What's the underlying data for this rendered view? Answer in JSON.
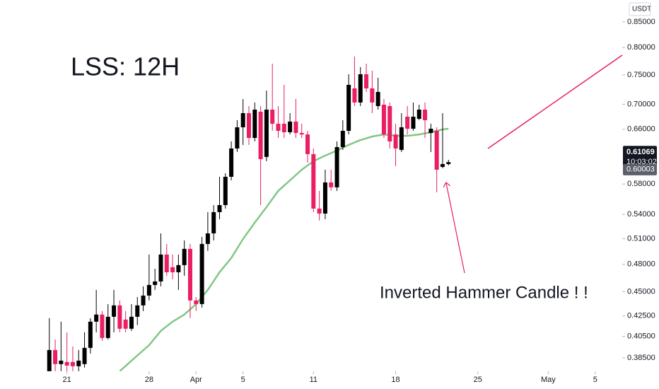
{
  "chart_data": {
    "type": "candlestick",
    "title": "LSS: 12H",
    "annotation": "Inverted Hammer Candle ! !",
    "y_unit": "USDT",
    "log_scale": true,
    "up_color": "#000000",
    "down_color": "#e91e63",
    "ylim": [
      0.373,
      0.895
    ],
    "yticks": [
      {
        "value": 0.85,
        "label": "0.85000"
      },
      {
        "value": 0.8,
        "label": "0.80000"
      },
      {
        "value": 0.75,
        "label": "0.75000"
      },
      {
        "value": 0.7,
        "label": "0.70000"
      },
      {
        "value": 0.66,
        "label": "0.66000"
      },
      {
        "value": 0.58,
        "label": "0.58000"
      },
      {
        "value": 0.54,
        "label": "0.54000"
      },
      {
        "value": 0.51,
        "label": "0.51000"
      },
      {
        "value": 0.48,
        "label": "0.48000"
      },
      {
        "value": 0.45,
        "label": "0.45000"
      },
      {
        "value": 0.425,
        "label": "0.42500"
      },
      {
        "value": 0.405,
        "label": "0.40500"
      },
      {
        "value": 0.385,
        "label": "0.38500"
      }
    ],
    "xlim": [
      -8.4,
      97.6
    ],
    "xticks": [
      {
        "value": 3,
        "label": "21"
      },
      {
        "value": 17,
        "label": "28"
      },
      {
        "value": 25,
        "label": "Apr"
      },
      {
        "value": 33,
        "label": "5"
      },
      {
        "value": 45,
        "label": "11"
      },
      {
        "value": 59,
        "label": "18"
      },
      {
        "value": 73,
        "label": "25"
      },
      {
        "value": 85,
        "label": "May"
      },
      {
        "value": 93,
        "label": "5"
      }
    ],
    "open": [
      0.3731,
      0.3922,
      0.3794,
      0.3813,
      0.3813,
      0.3775,
      0.3794,
      0.3942,
      0.4193,
      0.4264,
      0.4035,
      0.4242,
      0.4357,
      0.4214,
      0.4124,
      0.4242,
      0.4357,
      0.4459,
      0.4572,
      0.461,
      0.4912,
      0.4767,
      0.4711,
      0.4791,
      0.4978,
      0.4408,
      0.4371,
      0.5036,
      0.5163,
      0.5428,
      0.5519,
      0.59,
      0.6307,
      0.663,
      0.6855,
      0.6466,
      0.6878,
      0.6183,
      0.6912,
      0.6686,
      0.6686,
      0.6553,
      0.672,
      0.6542,
      0.6519,
      0.6224,
      0.5474,
      0.541,
      0.5822,
      0.5755,
      0.6328,
      0.6575,
      0.7267,
      0.7029,
      0.7513,
      0.7267,
      0.697,
      0.6993,
      0.697,
      0.6519,
      0.6286,
      0.6798,
      0.6608,
      0.6764,
      0.6912,
      0.6542,
      0.6575,
      0.6039,
      0.608
    ],
    "high": [
      0.4228,
      0.4021,
      0.4193,
      0.4089,
      0.3955,
      0.3922,
      0.4089,
      0.4228,
      0.4519,
      0.4299,
      0.4371,
      0.4519,
      0.4408,
      0.4299,
      0.4371,
      0.4444,
      0.4557,
      0.4912,
      0.4751,
      0.5163,
      0.5036,
      0.4912,
      0.4912,
      0.5078,
      0.5036,
      0.4444,
      0.512,
      0.5428,
      0.5519,
      0.59,
      0.5949,
      0.6413,
      0.6742,
      0.7087,
      0.697,
      0.7029,
      0.697,
      0.723,
      0.7703,
      0.697,
      0.7328,
      0.6855,
      0.7087,
      0.6686,
      0.6575,
      0.6307,
      0.5707,
      0.5999,
      0.5999,
      0.6413,
      0.6742,
      0.7513,
      0.7833,
      0.764,
      0.7703,
      0.7576,
      0.7451,
      0.7087,
      0.7029,
      0.6686,
      0.6855,
      0.697,
      0.7029,
      0.6993,
      0.7029,
      0.6686,
      0.663,
      0.6855,
      0.6141
    ],
    "low": [
      0.3731,
      0.3731,
      0.3731,
      0.3731,
      0.3731,
      0.3731,
      0.3763,
      0.389,
      0.4089,
      0.4008,
      0.4021,
      0.4089,
      0.4089,
      0.4089,
      0.4103,
      0.4159,
      0.4299,
      0.4408,
      0.4519,
      0.4557,
      0.4672,
      0.4633,
      0.4519,
      0.4672,
      0.4228,
      0.4299,
      0.4335,
      0.4954,
      0.5078,
      0.5339,
      0.5474,
      0.5851,
      0.6255,
      0.636,
      0.636,
      0.6413,
      0.5519,
      0.6121,
      0.6575,
      0.6466,
      0.6466,
      0.6519,
      0.6466,
      0.6466,
      0.61,
      0.5428,
      0.5322,
      0.5339,
      0.5707,
      0.5707,
      0.6286,
      0.6519,
      0.697,
      0.697,
      0.7206,
      0.6855,
      0.6912,
      0.6466,
      0.6307,
      0.605,
      0.6255,
      0.6519,
      0.6575,
      0.6742,
      0.6466,
      0.6255,
      0.5688,
      0.6019,
      0.606
    ],
    "close": [
      0.3922,
      0.3794,
      0.3825,
      0.3781,
      0.3775,
      0.3825,
      0.3942,
      0.4193,
      0.4264,
      0.4035,
      0.4242,
      0.4357,
      0.4124,
      0.4124,
      0.4242,
      0.4357,
      0.4459,
      0.4572,
      0.461,
      0.4912,
      0.4711,
      0.4711,
      0.4791,
      0.4978,
      0.4408,
      0.4371,
      0.5036,
      0.5163,
      0.5428,
      0.5519,
      0.59,
      0.6307,
      0.663,
      0.6855,
      0.6466,
      0.6912,
      0.6151,
      0.6912,
      0.6686,
      0.6575,
      0.6553,
      0.672,
      0.6542,
      0.6519,
      0.6224,
      0.5474,
      0.541,
      0.5822,
      0.5755,
      0.6328,
      0.6575,
      0.7328,
      0.7029,
      0.7513,
      0.7267,
      0.7029,
      0.7206,
      0.6519,
      0.6413,
      0.6307,
      0.663,
      0.6608,
      0.6798,
      0.6912,
      0.6742,
      0.6608,
      0.5999,
      0.608,
      0.6107
    ],
    "moving_average": {
      "color": "#81c784",
      "x": [
        12,
        14,
        17,
        19,
        21,
        23,
        25,
        27,
        29,
        31,
        33,
        35,
        37,
        39,
        41,
        43,
        45,
        47,
        49,
        51,
        53,
        55,
        57,
        59,
        61,
        63,
        65,
        67,
        68
      ],
      "values": [
        0.3731,
        0.3825,
        0.3968,
        0.4103,
        0.4193,
        0.4264,
        0.4371,
        0.4519,
        0.4711,
        0.4872,
        0.5095,
        0.5295,
        0.5493,
        0.5707,
        0.5851,
        0.5999,
        0.6121,
        0.6202,
        0.6276,
        0.636,
        0.6434,
        0.6488,
        0.6519,
        0.6498,
        0.6498,
        0.6519,
        0.6553,
        0.6597,
        0.6608
      ]
    },
    "last_price": 0.61069,
    "countdown": "10:03:02",
    "indicator_price": 0.60003
  }
}
